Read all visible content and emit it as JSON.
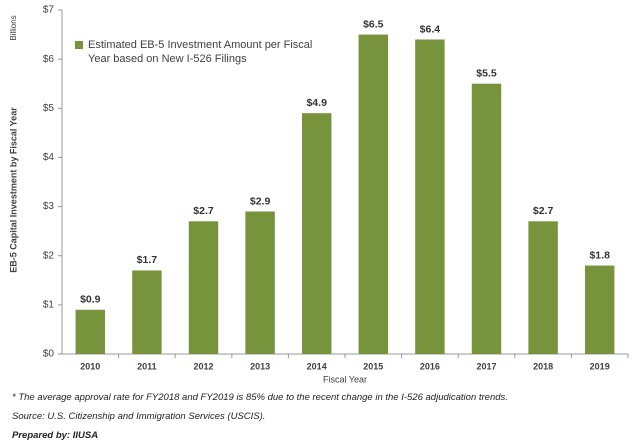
{
  "chart_data": {
    "type": "bar",
    "unit_label": "Billions",
    "y_label": "EB-5 Capital Investment by Fiscal Year",
    "x_label": "Fiscal Year",
    "categories": [
      "2010",
      "2011",
      "2012",
      "2013",
      "2014",
      "2015",
      "2016",
      "2017",
      "2018",
      "2019"
    ],
    "series": [
      {
        "name": "Estimated EB-5 Investment Amount per Fiscal Year based on New I-526 Filings",
        "color": "#77933c",
        "values": [
          0.9,
          1.7,
          2.7,
          2.9,
          4.9,
          6.5,
          6.4,
          5.5,
          2.7,
          1.8
        ],
        "value_labels": [
          "$0.9",
          "$1.7",
          "$2.7",
          "$2.9",
          "$4.9",
          "$6.5",
          "$6.4",
          "$5.5",
          "$2.7",
          "$1.8"
        ]
      }
    ],
    "ylim": [
      0,
      7
    ],
    "yticks": [
      {
        "value": 0,
        "label": "$0"
      },
      {
        "value": 1,
        "label": "$1"
      },
      {
        "value": 2,
        "label": "$2"
      },
      {
        "value": 3,
        "label": "$3"
      },
      {
        "value": 4,
        "label": "$4"
      },
      {
        "value": 5,
        "label": "$5"
      },
      {
        "value": 6,
        "label": "$6"
      },
      {
        "value": 7,
        "label": "$7"
      }
    ],
    "grid": false,
    "legend": "upper left",
    "notes": [
      "* The average approval rate for FY2018 and FY2019 is 85% due to the recent change in the I-526 adjudication trends.",
      "Source: U.S. Citizenship and Immigration Services (USCIS).",
      "Prepared by: IIUSA"
    ]
  }
}
